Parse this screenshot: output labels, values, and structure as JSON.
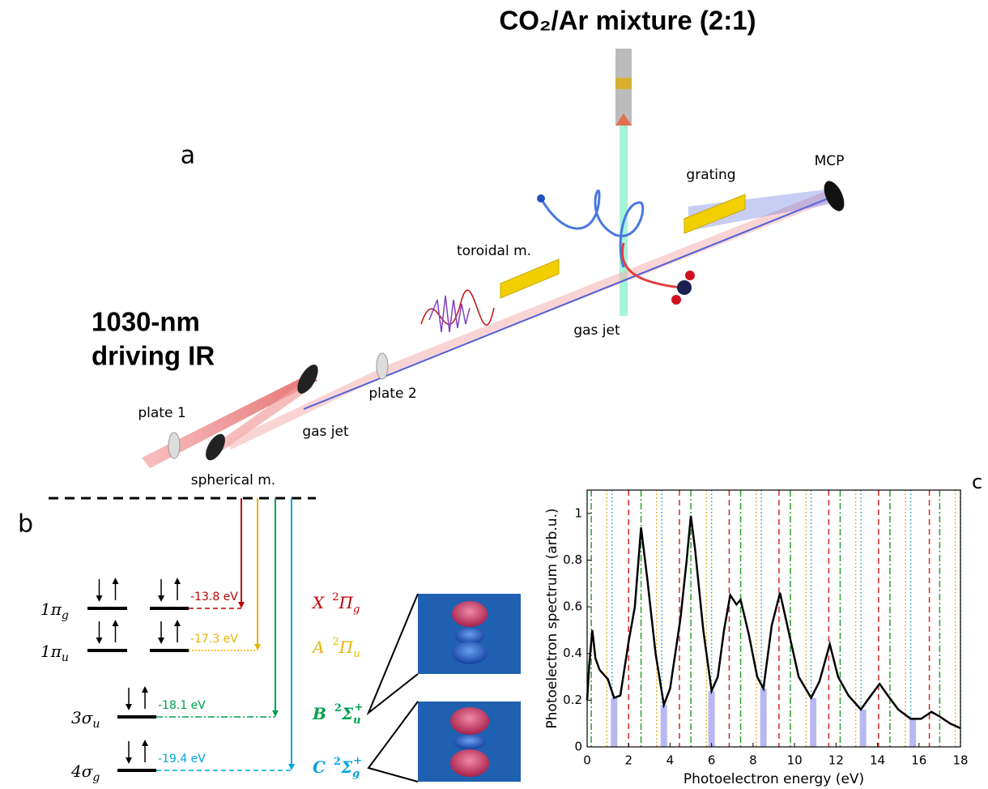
{
  "panel_a": {
    "label": "a",
    "title": "CO₂/Ar mixture (2:1)",
    "source": [
      "1030-nm",
      "driving IR"
    ],
    "components": {
      "mcp": "MCP",
      "grating": "grating",
      "toroidal": "toroidal m.",
      "gas_jet_target": "gas jet",
      "plate2": "plate 2",
      "plate1": "plate 1",
      "gas_jet_hhg": "gas jet",
      "spherical": "spherical  m."
    }
  },
  "panel_b": {
    "label": "b",
    "orbitals": [
      {
        "name": "1π",
        "sub": "g",
        "energy": "-13.8 eV",
        "color": "#c00000",
        "state": "X",
        "mult": "2",
        "sym": "Π",
        "sym_sub": "g"
      },
      {
        "name": "1π",
        "sub": "u",
        "energy": "-17.3 eV",
        "color": "#e8b400",
        "state": "A",
        "mult": "2",
        "sym": "Π",
        "sym_sub": "u"
      },
      {
        "name": "3σ",
        "sub": "u",
        "energy": "-18.1 eV",
        "color": "#00a050",
        "state": "B",
        "mult": "2",
        "sym": "Σ",
        "sym_sub": "u",
        "sym_sup": "+"
      },
      {
        "name": "4σ",
        "sub": "g",
        "energy": "-19.4 eV",
        "color": "#00a6dc",
        "state": "C",
        "mult": "2",
        "sym": "Σ",
        "sym_sub": "g",
        "sym_sup": "+"
      }
    ]
  },
  "panel_c": {
    "label": "c"
  },
  "chart_data": {
    "type": "line",
    "xlabel": "Photoelectron energy (eV)",
    "ylabel": "Photoelectron spectrum (arb.u.)",
    "xlim": [
      0,
      18
    ],
    "ylim": [
      0,
      1.1
    ],
    "xticks": [
      0,
      2,
      4,
      6,
      8,
      10,
      12,
      14,
      16,
      18
    ],
    "yticks": [
      0,
      0.2,
      0.4,
      0.6,
      0.8,
      1
    ],
    "x": [
      0,
      0.1,
      0.25,
      0.4,
      0.6,
      1.0,
      1.3,
      1.6,
      2.0,
      2.3,
      2.6,
      2.9,
      3.3,
      3.7,
      4.0,
      4.5,
      4.8,
      5.0,
      5.2,
      5.6,
      6.0,
      6.3,
      6.6,
      6.9,
      7.2,
      7.4,
      7.8,
      8.2,
      8.5,
      8.9,
      9.3,
      9.7,
      10.2,
      10.8,
      11.2,
      11.7,
      12.1,
      12.6,
      13.2,
      13.6,
      14.1,
      14.5,
      15.0,
      15.6,
      16.1,
      16.6,
      17.0,
      17.5,
      18
    ],
    "series": [
      {
        "color": "#000000",
        "values": [
          0.2,
          0.35,
          0.5,
          0.38,
          0.33,
          0.29,
          0.21,
          0.22,
          0.45,
          0.6,
          0.94,
          0.72,
          0.4,
          0.18,
          0.25,
          0.55,
          0.8,
          0.99,
          0.85,
          0.5,
          0.24,
          0.3,
          0.5,
          0.65,
          0.61,
          0.63,
          0.48,
          0.3,
          0.25,
          0.52,
          0.66,
          0.5,
          0.3,
          0.21,
          0.28,
          0.44,
          0.3,
          0.22,
          0.16,
          0.21,
          0.27,
          0.22,
          0.16,
          0.12,
          0.12,
          0.15,
          0.13,
          0.1,
          0.08
        ]
      }
    ],
    "bands": {
      "color": "#b8b8f0",
      "x": [
        1.3,
        3.7,
        6.0,
        8.5,
        10.9,
        13.3,
        15.7
      ],
      "values": [
        0.21,
        0.18,
        0.24,
        0.25,
        0.21,
        0.16,
        0.12
      ]
    },
    "vlines": [
      {
        "color": "#d62728",
        "dash": "7,5",
        "x": [
          2.0,
          4.45,
          6.85,
          9.25,
          11.65,
          14.05,
          16.5
        ]
      },
      {
        "color": "#e8a000",
        "dash": "1.5,3",
        "x": [
          0.95,
          3.35,
          5.75,
          8.15,
          10.55,
          12.95,
          15.35,
          17.75
        ]
      },
      {
        "color": "#2ca02c",
        "dash": "8,3,2,3",
        "x": [
          0.2,
          2.6,
          5.0,
          7.4,
          9.8,
          12.2,
          14.6,
          17.0
        ]
      },
      {
        "color": "#17a0c8",
        "dash": "1.5,3",
        "x": [
          1.2,
          3.6,
          6.0,
          8.4,
          10.8,
          13.2,
          15.6,
          18.0
        ]
      }
    ]
  }
}
